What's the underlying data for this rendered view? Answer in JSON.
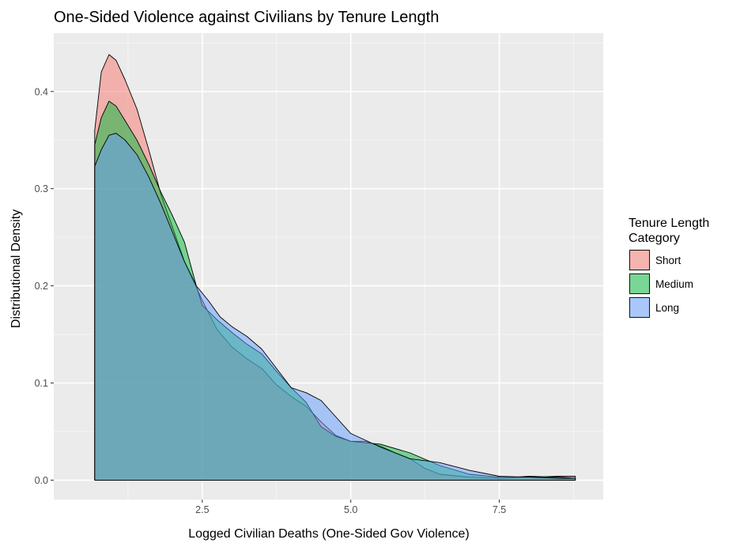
{
  "chart_data": {
    "type": "area",
    "title": "One-Sided Violence against Civilians by Tenure Length",
    "xlabel": "Logged Civilian Deaths (One-Sided Gov Violence)",
    "ylabel": "Distributional Density",
    "xlim": [
      0.0,
      9.25
    ],
    "ylim": [
      -0.02,
      0.46
    ],
    "x_ticks": [
      2.5,
      5.0,
      7.5
    ],
    "x_tick_labels": [
      "2.5",
      "5.0",
      "7.5"
    ],
    "y_ticks": [
      0.0,
      0.1,
      0.2,
      0.3,
      0.4
    ],
    "y_tick_labels": [
      "0.0",
      "0.1",
      "0.2",
      "0.3",
      "0.4"
    ],
    "grid": true,
    "legend": {
      "title_lines": [
        "Tenure Length",
        "Category"
      ],
      "position": "right"
    },
    "series": [
      {
        "name": "Short",
        "color": "#F8766D",
        "points": [
          [
            0.69,
            0.36
          ],
          [
            0.8,
            0.42
          ],
          [
            0.93,
            0.438
          ],
          [
            1.05,
            0.432
          ],
          [
            1.2,
            0.412
          ],
          [
            1.4,
            0.382
          ],
          [
            1.6,
            0.34
          ],
          [
            1.8,
            0.295
          ],
          [
            2.0,
            0.26
          ],
          [
            2.2,
            0.225
          ],
          [
            2.5,
            0.185
          ],
          [
            2.75,
            0.155
          ],
          [
            3.0,
            0.137
          ],
          [
            3.25,
            0.125
          ],
          [
            3.5,
            0.115
          ],
          [
            3.75,
            0.098
          ],
          [
            4.0,
            0.086
          ],
          [
            4.25,
            0.076
          ],
          [
            4.5,
            0.06
          ],
          [
            4.75,
            0.046
          ],
          [
            5.0,
            0.04
          ],
          [
            5.25,
            0.04
          ],
          [
            5.5,
            0.035
          ],
          [
            5.75,
            0.028
          ],
          [
            6.0,
            0.022
          ],
          [
            6.25,
            0.012
          ],
          [
            6.5,
            0.006
          ],
          [
            7.0,
            0.003
          ],
          [
            7.5,
            0.002
          ],
          [
            8.0,
            0.003
          ],
          [
            8.5,
            0.004
          ],
          [
            8.78,
            0.004
          ],
          [
            8.78,
            0.0
          ],
          [
            0.69,
            0.0
          ]
        ]
      },
      {
        "name": "Medium",
        "color": "#00BA38",
        "points": [
          [
            0.69,
            0.345
          ],
          [
            0.8,
            0.373
          ],
          [
            0.93,
            0.39
          ],
          [
            1.05,
            0.385
          ],
          [
            1.2,
            0.37
          ],
          [
            1.4,
            0.35
          ],
          [
            1.6,
            0.325
          ],
          [
            1.8,
            0.297
          ],
          [
            2.0,
            0.272
          ],
          [
            2.2,
            0.245
          ],
          [
            2.4,
            0.2
          ],
          [
            2.5,
            0.18
          ],
          [
            2.75,
            0.165
          ],
          [
            3.0,
            0.152
          ],
          [
            3.25,
            0.14
          ],
          [
            3.5,
            0.13
          ],
          [
            3.75,
            0.112
          ],
          [
            4.0,
            0.095
          ],
          [
            4.25,
            0.08
          ],
          [
            4.5,
            0.055
          ],
          [
            4.75,
            0.045
          ],
          [
            5.0,
            0.04
          ],
          [
            5.5,
            0.037
          ],
          [
            6.0,
            0.028
          ],
          [
            6.5,
            0.015
          ],
          [
            7.0,
            0.006
          ],
          [
            7.5,
            0.003
          ],
          [
            7.75,
            0.003
          ],
          [
            8.0,
            0.004
          ],
          [
            8.5,
            0.003
          ],
          [
            8.78,
            0.002
          ],
          [
            8.78,
            0.0
          ],
          [
            0.69,
            0.0
          ]
        ]
      },
      {
        "name": "Long",
        "color": "#619CFF",
        "points": [
          [
            0.69,
            0.323
          ],
          [
            0.8,
            0.34
          ],
          [
            0.93,
            0.355
          ],
          [
            1.05,
            0.357
          ],
          [
            1.2,
            0.35
          ],
          [
            1.4,
            0.335
          ],
          [
            1.6,
            0.312
          ],
          [
            1.8,
            0.285
          ],
          [
            2.0,
            0.255
          ],
          [
            2.2,
            0.225
          ],
          [
            2.4,
            0.2
          ],
          [
            2.6,
            0.185
          ],
          [
            2.8,
            0.168
          ],
          [
            3.0,
            0.158
          ],
          [
            3.25,
            0.148
          ],
          [
            3.5,
            0.135
          ],
          [
            3.75,
            0.115
          ],
          [
            4.0,
            0.095
          ],
          [
            4.25,
            0.09
          ],
          [
            4.5,
            0.082
          ],
          [
            4.75,
            0.065
          ],
          [
            5.0,
            0.048
          ],
          [
            5.5,
            0.034
          ],
          [
            6.0,
            0.022
          ],
          [
            6.25,
            0.02
          ],
          [
            6.5,
            0.018
          ],
          [
            7.0,
            0.01
          ],
          [
            7.5,
            0.004
          ],
          [
            8.0,
            0.003
          ],
          [
            8.5,
            0.002
          ],
          [
            8.78,
            0.002
          ],
          [
            8.78,
            0.0
          ],
          [
            0.69,
            0.0
          ]
        ]
      }
    ]
  }
}
